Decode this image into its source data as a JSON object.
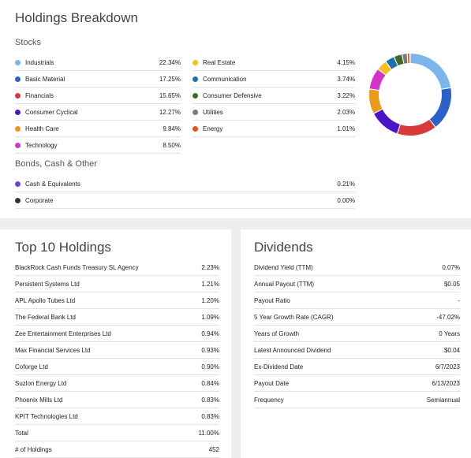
{
  "breakdown": {
    "title": "Holdings Breakdown",
    "stocks_label": "Stocks",
    "bonds_label": "Bonds, Cash & Other",
    "stocks_left": [
      {
        "label": "Industrials",
        "value": "22.34%",
        "color": "#7cb5ec"
      },
      {
        "label": "Basic Material",
        "value": "17.25%",
        "color": "#2a62c9"
      },
      {
        "label": "Financials",
        "value": "15.65%",
        "color": "#d63a3a"
      },
      {
        "label": "Consumer Cyclical",
        "value": "12.27%",
        "color": "#4a17c8"
      },
      {
        "label": "Health Care",
        "value": "9.84%",
        "color": "#e89a18"
      },
      {
        "label": "Technology",
        "value": "8.50%",
        "color": "#d732c8"
      }
    ],
    "stocks_right": [
      {
        "label": "Real Estate",
        "value": "4.15%",
        "color": "#f2c21a"
      },
      {
        "label": "Communication",
        "value": "3.74%",
        "color": "#1f6fb2"
      },
      {
        "label": "Consumer Defensive",
        "value": "3.22%",
        "color": "#3f6b26"
      },
      {
        "label": "Utilities",
        "value": "2.03%",
        "color": "#7a7a7a"
      },
      {
        "label": "Energy",
        "value": "1.01%",
        "color": "#e8541c"
      }
    ],
    "other": [
      {
        "label": "Cash & Equivalents",
        "value": "0.21%",
        "color": "#7245c8"
      },
      {
        "label": "Corporate",
        "value": "0.00%",
        "color": "#333333"
      }
    ]
  },
  "chart_data": {
    "type": "pie",
    "categories": [
      "Industrials",
      "Basic Material",
      "Financials",
      "Consumer Cyclical",
      "Health Care",
      "Technology",
      "Real Estate",
      "Communication",
      "Consumer Defensive",
      "Utilities",
      "Energy",
      "Cash & Equivalents",
      "Corporate"
    ],
    "values": [
      22.34,
      17.25,
      15.65,
      12.27,
      9.84,
      8.5,
      4.15,
      3.74,
      3.22,
      2.03,
      1.01,
      0.21,
      0.0
    ],
    "colors": [
      "#7cb5ec",
      "#2a62c9",
      "#d63a3a",
      "#4a17c8",
      "#e89a18",
      "#d732c8",
      "#f2c21a",
      "#1f6fb2",
      "#3f6b26",
      "#7a7a7a",
      "#e8541c",
      "#7245c8",
      "#333333"
    ],
    "donut": true
  },
  "top10": {
    "title": "Top 10 Holdings",
    "rows": [
      {
        "label": "BlackRock Cash Funds Treasury SL Agency",
        "value": "2.23%"
      },
      {
        "label": "Persistent Systems Ltd",
        "value": "1.21%"
      },
      {
        "label": "APL Apollo Tubes Ltd",
        "value": "1.20%"
      },
      {
        "label": "The Federal Bank Ltd",
        "value": "1.09%"
      },
      {
        "label": "Zee Entertainment Enterprises Ltd",
        "value": "0.94%"
      },
      {
        "label": "Max Financial Services Ltd",
        "value": "0.93%"
      },
      {
        "label": "Coforge Ltd",
        "value": "0.90%"
      },
      {
        "label": "Suzlon Energy Ltd",
        "value": "0.84%"
      },
      {
        "label": "Phoenix Mills Ltd",
        "value": "0.83%"
      },
      {
        "label": "KPIT Technologies Ltd",
        "value": "0.83%"
      },
      {
        "label": "Total",
        "value": "11.00%"
      },
      {
        "label": "# of Holdings",
        "value": "452"
      }
    ]
  },
  "dividends": {
    "title": "Dividends",
    "rows": [
      {
        "label": "Dividend Yield (TTM)",
        "value": "0.07%"
      },
      {
        "label": "Annual Payout (TTM)",
        "value": "$0.05"
      },
      {
        "label": "Payout Ratio",
        "value": "-"
      },
      {
        "label": "5 Year Growth Rate (CAGR)",
        "value": "-47.02%"
      },
      {
        "label": "Years of Growth",
        "value": "0 Years"
      },
      {
        "label": "Latest Announced Dividend",
        "value": "$0.04"
      },
      {
        "label": "Ex-Dividend Date",
        "value": "6/7/2023"
      },
      {
        "label": "Payout Date",
        "value": "6/13/2023"
      },
      {
        "label": "Frequency",
        "value": "Semiannual"
      }
    ]
  }
}
